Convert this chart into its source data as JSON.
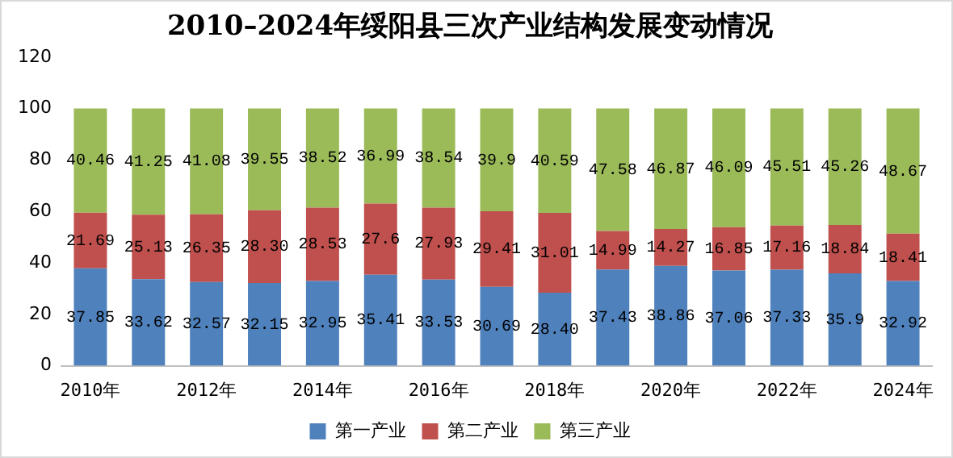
{
  "chart_data": {
    "type": "bar",
    "title": "2010–2024年绥阳县三次产业结构发展变动情况",
    "stacked": true,
    "legend": "bottom",
    "grid": false,
    "categories": [
      "2010年",
      null,
      "2012年",
      null,
      "2014年",
      null,
      "2016年",
      null,
      "2018年",
      null,
      "2020年",
      null,
      "2022年",
      null,
      "2024年"
    ],
    "ylim": [
      0,
      120
    ],
    "yticks": [
      0,
      20,
      40,
      60,
      80,
      100,
      120
    ],
    "series": [
      {
        "name": "第一产业",
        "color": "#4f81bd",
        "values": [
          37.85,
          33.62,
          32.57,
          32.15,
          32.95,
          35.41,
          33.53,
          30.69,
          28.4,
          37.43,
          38.86,
          37.06,
          37.33,
          35.9,
          32.92
        ],
        "value_labels": [
          "37.85",
          "33.62",
          "32.57",
          "32.15",
          "32.95",
          "35.41",
          "33.53",
          "30.69",
          "28.40",
          "37.43",
          "38.86",
          "37.06",
          "37.33",
          "35.9",
          "32.92"
        ]
      },
      {
        "name": "第二产业",
        "color": "#c0504d",
        "values": [
          21.69,
          25.13,
          26.35,
          28.3,
          28.53,
          27.6,
          27.93,
          29.41,
          31.01,
          14.99,
          14.27,
          16.85,
          17.16,
          18.84,
          18.41
        ],
        "value_labels": [
          "21.69",
          "25.13",
          "26.35",
          "28.30",
          "28.53",
          "27.6",
          "27.93",
          "29.41",
          "31.01",
          "14.99",
          "14.27",
          "16.85",
          "17.16",
          "18.84",
          "18.41"
        ]
      },
      {
        "name": "第三产业",
        "color": "#9bbb59",
        "values": [
          40.46,
          41.25,
          41.08,
          39.55,
          38.52,
          36.99,
          38.54,
          39.9,
          40.59,
          47.58,
          46.87,
          46.09,
          45.51,
          45.26,
          48.67
        ],
        "value_labels": [
          "40.46",
          "41.25",
          "41.08",
          "39.55",
          "38.52",
          "36.99",
          "38.54",
          "39.9",
          "40.59",
          "47.58",
          "46.87",
          "46.09",
          "45.51",
          "45.26",
          "48.67"
        ]
      }
    ]
  }
}
